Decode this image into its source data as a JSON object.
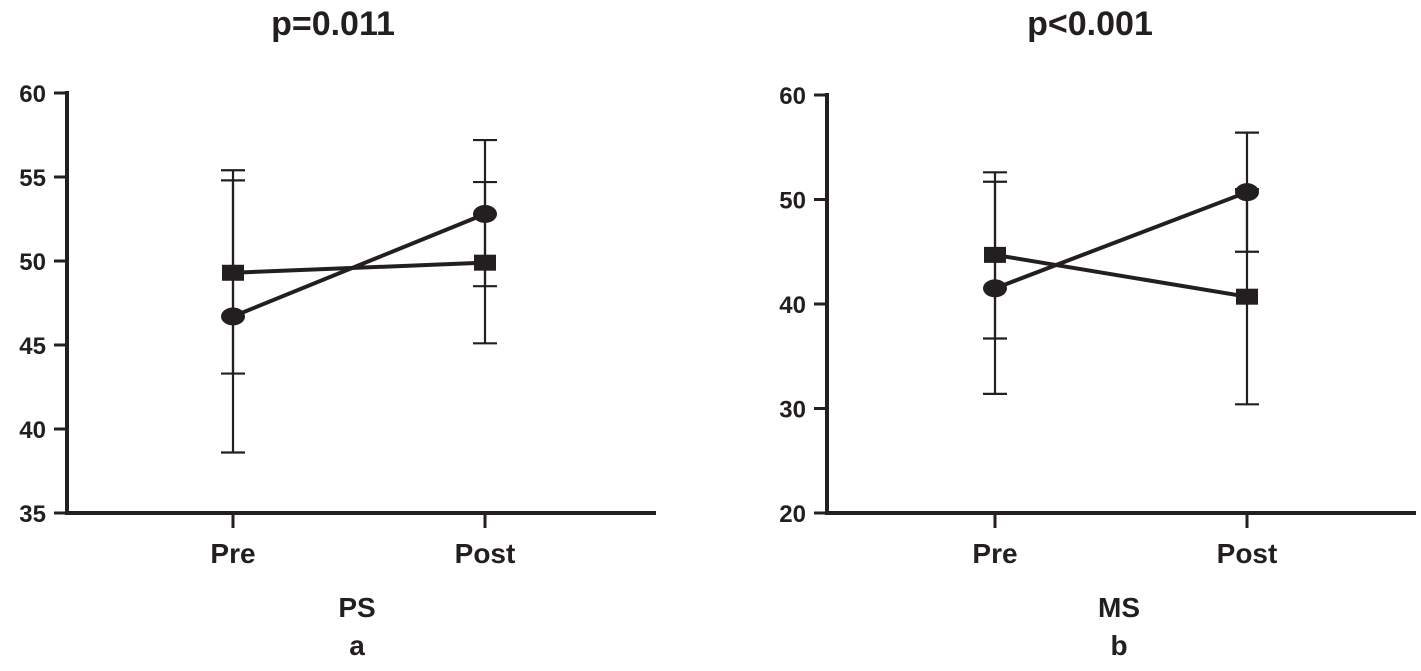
{
  "colors": {
    "ink": "#231f20",
    "background": "#ffffff"
  },
  "chart_data": [
    {
      "type": "line",
      "title": "p=0.011",
      "xlabel": "PS",
      "panel_label": "a",
      "categories": [
        "Pre",
        "Post"
      ],
      "ylim": [
        35,
        60
      ],
      "yticks": [
        "35",
        "40",
        "45",
        "50",
        "55",
        "60"
      ],
      "series": [
        {
          "marker": "circle",
          "values": [
            46.7,
            52.8
          ],
          "err_low": [
            38.6,
            48.5
          ],
          "err_high": [
            54.8,
            57.2
          ]
        },
        {
          "marker": "square",
          "values": [
            49.3,
            49.9
          ],
          "err_low": [
            43.3,
            45.1
          ],
          "err_high": [
            55.4,
            54.7
          ]
        }
      ],
      "grid": false
    },
    {
      "type": "line",
      "title": "p<0.001",
      "xlabel": "MS",
      "panel_label": "b",
      "categories": [
        "Pre",
        "Post"
      ],
      "ylim": [
        20,
        60
      ],
      "yticks": [
        "20",
        "30",
        "40",
        "50",
        "60"
      ],
      "series": [
        {
          "marker": "circle",
          "values": [
            41.5,
            50.7
          ],
          "err_low": [
            31.4,
            45.0
          ],
          "err_high": [
            51.7,
            56.4
          ]
        },
        {
          "marker": "square",
          "values": [
            44.7,
            40.7
          ],
          "err_low": [
            36.7,
            30.4
          ],
          "err_high": [
            52.6,
            51.0
          ]
        }
      ],
      "grid": false
    }
  ]
}
